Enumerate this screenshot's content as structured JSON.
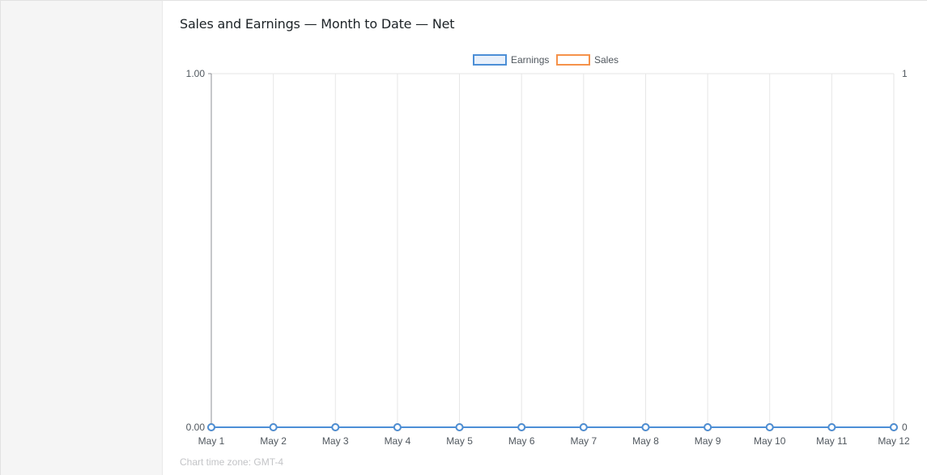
{
  "panel": {
    "title": "Sales and Earnings — Month to Date — Net",
    "timezone_note": "Chart time zone: GMT-4"
  },
  "chart_data": {
    "type": "line",
    "title": "",
    "xlabel": "",
    "ylabel": "",
    "legend_position": "top-center",
    "grid": true,
    "x": [
      "May 1",
      "May 2",
      "May 3",
      "May 4",
      "May 5",
      "May 6",
      "May 7",
      "May 8",
      "May 9",
      "May 10",
      "May 11",
      "May 12"
    ],
    "y_left": {
      "ylim": [
        0,
        1
      ],
      "tick_labels": [
        "1.00",
        "0.00"
      ]
    },
    "y_right": {
      "ylim": [
        0,
        1
      ],
      "tick_labels": [
        "1",
        "0"
      ]
    },
    "series": [
      {
        "name": "Earnings",
        "axis": "left",
        "color": "#4c8fd6",
        "fill": "#e8f0fb",
        "values": [
          0,
          0,
          0,
          0,
          0,
          0,
          0,
          0,
          0,
          0,
          0,
          0
        ]
      },
      {
        "name": "Sales",
        "axis": "right",
        "color": "#f5924a",
        "fill": "#ffffff",
        "values": [
          0,
          0,
          0,
          0,
          0,
          0,
          0,
          0,
          0,
          0,
          0,
          0
        ]
      }
    ]
  }
}
